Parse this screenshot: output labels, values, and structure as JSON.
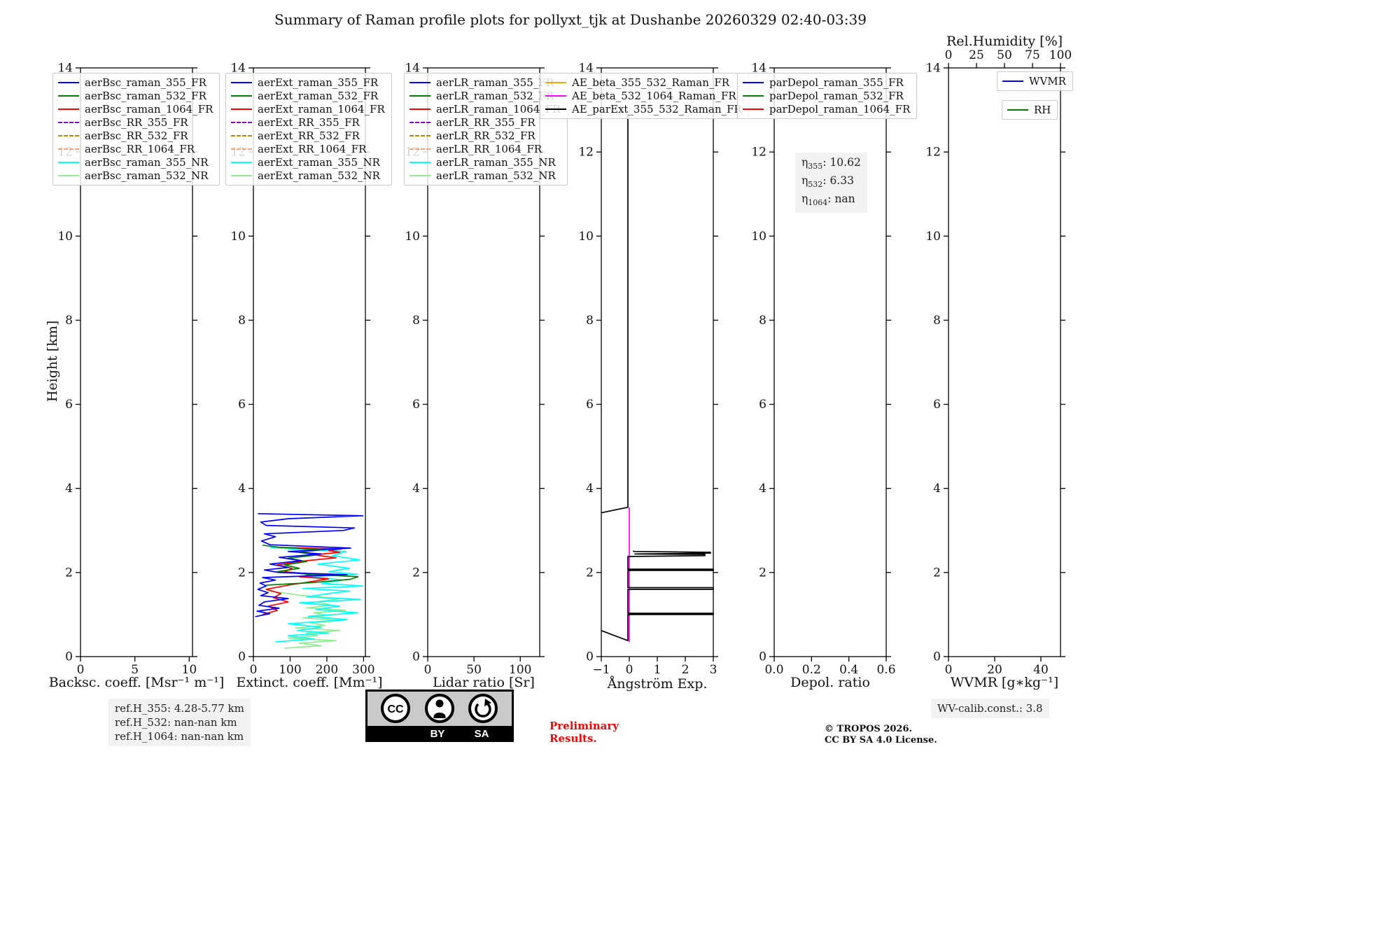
{
  "title": "Summary of Raman profile plots for pollyxt_tjk at Dushanbe 20260329 02:40-03:39",
  "ylabel": "Height [km]",
  "colors": {
    "preliminary": "#ff0000",
    "note_bg": "#f2f2f2"
  },
  "annotations": {
    "ref_lines": [
      "ref.H_355: 4.28-5.77 km",
      "ref.H_532: nan-nan km",
      "ref.H_1064: nan-nan km"
    ],
    "preliminary": [
      "Preliminary",
      "Results."
    ],
    "copyright": [
      "© TROPOS 2026.",
      "CC BY SA 4.0 License."
    ],
    "wv_calib": "WV-calib.const.: 3.8",
    "cc_badge": {
      "cc": "CC",
      "by": "BY",
      "sa": "SA"
    }
  },
  "chart_data": [
    {
      "name": "backscatter",
      "type": "line",
      "xlabel": "Backsc. coeff. [Msr⁻¹ m⁻¹]",
      "xlim": [
        0,
        10.3
      ],
      "xticks": [
        0,
        5,
        10
      ],
      "xtick_labels": [
        "0",
        "5",
        "10"
      ],
      "ylim": [
        0,
        14
      ],
      "yticks": [
        0,
        2,
        4,
        6,
        8,
        10,
        12,
        14
      ],
      "legends": [
        {
          "entries": [
            {
              "label": "aerBsc_raman_355_FR",
              "color": "#0000ff"
            },
            {
              "label": "aerBsc_raman_532_FR",
              "color": "#008000"
            },
            {
              "label": "aerBsc_raman_1064_FR",
              "color": "#ff0000"
            },
            {
              "label": "aerBsc_RR_355_FR",
              "color": "#9400d3",
              "dash": true
            },
            {
              "label": "aerBsc_RR_532_FR",
              "color": "#b8860b",
              "dash": true
            },
            {
              "label": "aerBsc_RR_1064_FR",
              "color": "#ffa07a",
              "dash": true
            },
            {
              "label": "aerBsc_raman_355_NR",
              "color": "#00ffff"
            },
            {
              "label": "aerBsc_raman_532_NR",
              "color": "#90ee90"
            }
          ]
        }
      ],
      "series": []
    },
    {
      "name": "extinction",
      "type": "line",
      "xlabel": "Extinct. coeff. [Mm⁻¹]",
      "xlim": [
        0,
        305
      ],
      "xticks": [
        0,
        100,
        200,
        300
      ],
      "xtick_labels": [
        "0",
        "100",
        "200",
        "300"
      ],
      "ylim": [
        0,
        14
      ],
      "yticks": [
        0,
        2,
        4,
        6,
        8,
        10,
        12,
        14
      ],
      "legends": [
        {
          "entries": [
            {
              "label": "aerExt_raman_355_FR",
              "color": "#0000ff"
            },
            {
              "label": "aerExt_raman_532_FR",
              "color": "#008000"
            },
            {
              "label": "aerExt_raman_1064_FR",
              "color": "#ff0000"
            },
            {
              "label": "aerExt_RR_355_FR",
              "color": "#9400d3",
              "dash": true
            },
            {
              "label": "aerExt_RR_532_FR",
              "color": "#b8860b",
              "dash": true
            },
            {
              "label": "aerExt_RR_1064_FR",
              "color": "#ffa07a",
              "dash": true
            },
            {
              "label": "aerExt_raman_355_NR",
              "color": "#00ffff"
            },
            {
              "label": "aerExt_raman_532_NR",
              "color": "#90ee90"
            }
          ]
        }
      ],
      "series": [
        {
          "name": "aerExt_raman_532_NR",
          "color": "#90ee90",
          "points": [
            [
              85,
              0.2
            ],
            [
              185,
              0.26
            ],
            [
              125,
              0.32
            ],
            [
              225,
              0.38
            ],
            [
              95,
              0.44
            ],
            [
              175,
              0.5
            ],
            [
              145,
              0.56
            ],
            [
              235,
              0.62
            ],
            [
              115,
              0.68
            ],
            [
              195,
              0.74
            ],
            [
              155,
              0.8
            ],
            [
              245,
              0.86
            ],
            [
              135,
              0.92
            ],
            [
              205,
              0.98
            ],
            [
              165,
              1.04
            ],
            [
              252,
              1.1
            ],
            [
              145,
              1.16
            ],
            [
              215,
              1.22
            ],
            [
              175,
              1.3
            ],
            [
              235,
              1.38
            ],
            [
              125,
              1.46
            ],
            [
              80,
              1.52
            ],
            [
              40,
              1.56
            ]
          ]
        },
        {
          "name": "aerExt_raman_355_NR",
          "color": "#00ffff",
          "points": [
            [
              60,
              0.35
            ],
            [
              165,
              0.42
            ],
            [
              95,
              0.5
            ],
            [
              205,
              0.56
            ],
            [
              120,
              0.62
            ],
            [
              185,
              0.7
            ],
            [
              95,
              0.78
            ],
            [
              255,
              0.88
            ],
            [
              150,
              0.96
            ],
            [
              285,
              1.04
            ],
            [
              170,
              1.12
            ],
            [
              235,
              1.2
            ],
            [
              125,
              1.28
            ],
            [
              292,
              1.36
            ],
            [
              145,
              1.42
            ],
            [
              205,
              1.5
            ],
            [
              262,
              1.56
            ],
            [
              135,
              1.62
            ],
            [
              298,
              1.68
            ],
            [
              185,
              1.74
            ],
            [
              245,
              1.82
            ],
            [
              155,
              1.9
            ],
            [
              282,
              1.96
            ],
            [
              205,
              2.02
            ],
            [
              262,
              2.1
            ],
            [
              175,
              2.2
            ],
            [
              290,
              2.3
            ],
            [
              215,
              2.4
            ],
            [
              252,
              2.5
            ],
            [
              105,
              2.56
            ],
            [
              45,
              2.6
            ]
          ]
        },
        {
          "name": "aerExt_raman_1064_FR",
          "color": "#ff0000",
          "points": [
            [
              25,
              1.0
            ],
            [
              65,
              1.1
            ],
            [
              40,
              1.2
            ],
            [
              95,
              1.3
            ],
            [
              55,
              1.4
            ],
            [
              75,
              1.5
            ],
            [
              35,
              1.6
            ],
            [
              95,
              1.7
            ],
            [
              155,
              1.78
            ],
            [
              205,
              1.85
            ],
            [
              125,
              1.9
            ],
            [
              165,
              1.96
            ],
            [
              85,
              2.02
            ],
            [
              105,
              2.1
            ],
            [
              65,
              2.18
            ],
            [
              145,
              2.28
            ],
            [
              225,
              2.35
            ],
            [
              165,
              2.42
            ],
            [
              235,
              2.48
            ],
            [
              205,
              2.52
            ],
            [
              240,
              2.56
            ],
            [
              65,
              2.6
            ]
          ]
        },
        {
          "name": "aerExt_raman_532_FR",
          "color": "#008000",
          "points": [
            [
              35,
              1.7
            ],
            [
              160,
              1.76
            ],
            [
              265,
              1.84
            ],
            [
              285,
              1.9
            ],
            [
              150,
              1.96
            ],
            [
              65,
              2.02
            ],
            [
              125,
              2.1
            ],
            [
              85,
              2.18
            ],
            [
              145,
              2.26
            ],
            [
              95,
              2.34
            ],
            [
              175,
              2.42
            ],
            [
              125,
              2.48
            ],
            [
              185,
              2.54
            ],
            [
              70,
              2.6
            ],
            [
              25,
              2.65
            ]
          ]
        },
        {
          "name": "aerExt_raman_355_FR",
          "color": "#0000ff",
          "points": [
            [
              5,
              0.95
            ],
            [
              45,
              1.02
            ],
            [
              10,
              1.08
            ],
            [
              70,
              1.15
            ],
            [
              15,
              1.22
            ],
            [
              30,
              1.3
            ],
            [
              95,
              1.38
            ],
            [
              20,
              1.45
            ],
            [
              40,
              1.52
            ],
            [
              12,
              1.6
            ],
            [
              35,
              1.68
            ],
            [
              18,
              1.75
            ],
            [
              60,
              1.82
            ],
            [
              25,
              1.88
            ],
            [
              255,
              1.95
            ],
            [
              70,
              2.0
            ],
            [
              30,
              2.06
            ],
            [
              95,
              2.12
            ],
            [
              45,
              2.2
            ],
            [
              130,
              2.28
            ],
            [
              70,
              2.36
            ],
            [
              185,
              2.44
            ],
            [
              95,
              2.5
            ],
            [
              265,
              2.58
            ],
            [
              45,
              2.66
            ],
            [
              22,
              2.75
            ],
            [
              60,
              2.85
            ],
            [
              30,
              2.92
            ],
            [
              245,
              3.0
            ],
            [
              275,
              3.06
            ],
            [
              35,
              3.12
            ],
            [
              20,
              3.2
            ],
            [
              95,
              3.28
            ],
            [
              298,
              3.35
            ],
            [
              12,
              3.4
            ]
          ]
        }
      ]
    },
    {
      "name": "lidar-ratio",
      "type": "line",
      "xlabel": "Lidar ratio [Sr]",
      "xlim": [
        0,
        121
      ],
      "xticks": [
        0,
        50,
        100
      ],
      "xtick_labels": [
        "0",
        "50",
        "100"
      ],
      "ylim": [
        0,
        14
      ],
      "yticks": [
        0,
        2,
        4,
        6,
        8,
        10,
        12,
        14
      ],
      "legends": [
        {
          "entries": [
            {
              "label": "aerLR_raman_355_FR",
              "color": "#0000ff"
            },
            {
              "label": "aerLR_raman_532_FR",
              "color": "#008000"
            },
            {
              "label": "aerLR_raman_1064_FR",
              "color": "#ff0000"
            },
            {
              "label": "aerLR_RR_355_FR",
              "color": "#9400d3",
              "dash": true
            },
            {
              "label": "aerLR_RR_532_FR",
              "color": "#b8860b",
              "dash": true
            },
            {
              "label": "aerLR_RR_1064_FR",
              "color": "#ffa07a",
              "dash": true
            },
            {
              "label": "aerLR_raman_355_NR",
              "color": "#00ffff"
            },
            {
              "label": "aerLR_raman_532_NR",
              "color": "#90ee90"
            }
          ]
        }
      ],
      "series": []
    },
    {
      "name": "angstrom",
      "type": "line",
      "xlabel": "Ångström Exp.",
      "xlim": [
        -1,
        3
      ],
      "xticks": [
        -1,
        0,
        1,
        2,
        3
      ],
      "xtick_labels": [
        "−1",
        "0",
        "1",
        "2",
        "3"
      ],
      "ylim": [
        0,
        14
      ],
      "yticks": [
        0,
        2,
        4,
        6,
        8,
        10,
        12,
        14
      ],
      "legends": [
        {
          "entries": [
            {
              "label": "AE_beta_355_532_Raman_FR",
              "color": "#ffa500"
            },
            {
              "label": "AE_beta_532_1064_Raman_FR",
              "color": "#ff00ff"
            },
            {
              "label": "AE_parExt_355_532_Raman_FR",
              "color": "#000000"
            }
          ]
        }
      ],
      "series": [
        {
          "name": "AE_beta_532_1064_Raman_FR",
          "color": "#ff00ff",
          "points": [
            [
              0,
              0.35
            ],
            [
              0,
              3.55
            ]
          ]
        },
        {
          "name": "AE_parExt_355_532_Raman_FR",
          "color": "#000000",
          "segments": [
            [
              [
                -1,
                0.62
              ],
              [
                -0.05,
                0.38
              ],
              [
                -0.05,
                1.0
              ],
              [
                3,
                1.0
              ],
              [
                3,
                1.03
              ],
              [
                -0.05,
                1.03
              ],
              [
                -0.05,
                1.6
              ],
              [
                3,
                1.6
              ],
              [
                3,
                1.64
              ],
              [
                -0.05,
                1.64
              ],
              [
                -0.05,
                2.05
              ],
              [
                3,
                2.05
              ],
              [
                3,
                2.08
              ],
              [
                -0.05,
                2.08
              ],
              [
                -0.05,
                2.38
              ],
              [
                2.7,
                2.4
              ],
              [
                2.7,
                2.43
              ],
              [
                0.2,
                2.44
              ],
              [
                2.9,
                2.46
              ],
              [
                2.9,
                2.48
              ],
              [
                0.15,
                2.5
              ],
              [
                0.15,
                2.52
              ]
            ],
            [
              [
                -1,
                3.42
              ],
              [
                -0.05,
                3.55
              ],
              [
                -0.05,
                12.9
              ]
            ]
          ]
        }
      ]
    },
    {
      "name": "depol",
      "type": "line",
      "xlabel": "Depol. ratio",
      "xlim": [
        0,
        0.6
      ],
      "xticks": [
        0,
        0.2,
        0.4,
        0.6
      ],
      "xtick_labels": [
        "0.0",
        "0.2",
        "0.4",
        "0.6"
      ],
      "ylim": [
        0,
        14
      ],
      "yticks": [
        0,
        2,
        4,
        6,
        8,
        10,
        12,
        14
      ],
      "legends": [
        {
          "entries": [
            {
              "label": "parDepol_raman_355_FR",
              "color": "#0000ff"
            },
            {
              "label": "parDepol_raman_532_FR",
              "color": "#008000"
            },
            {
              "label": "parDepol_raman_1064_FR",
              "color": "#ff0000"
            }
          ]
        }
      ],
      "annotation": {
        "lines": [
          {
            "sym": "η",
            "sub": "355",
            "rest": ": 10.62"
          },
          {
            "sym": "η",
            "sub": "532",
            "rest": ": 6.33"
          },
          {
            "sym": "η",
            "sub": "1064",
            "rest": ": nan"
          }
        ]
      },
      "series": []
    },
    {
      "name": "wvmr",
      "type": "line",
      "xlabel": "WVMR [g∗kg⁻¹]",
      "xlim": [
        0,
        48.5
      ],
      "xticks": [
        0,
        20,
        40
      ],
      "xtick_labels": [
        "0",
        "20",
        "40"
      ],
      "ylim": [
        0,
        14
      ],
      "yticks": [
        0,
        2,
        4,
        6,
        8,
        10,
        12,
        14
      ],
      "x2": {
        "label": "Rel.Humidity [%]",
        "lim": [
          0,
          100
        ],
        "ticks": [
          0,
          25,
          50,
          75,
          100
        ]
      },
      "legends": [
        {
          "entries": [
            {
              "label": "WVMR",
              "color": "#0000ff"
            }
          ]
        },
        {
          "entries": [
            {
              "label": "RH",
              "color": "#008000"
            }
          ]
        }
      ],
      "series": []
    }
  ]
}
